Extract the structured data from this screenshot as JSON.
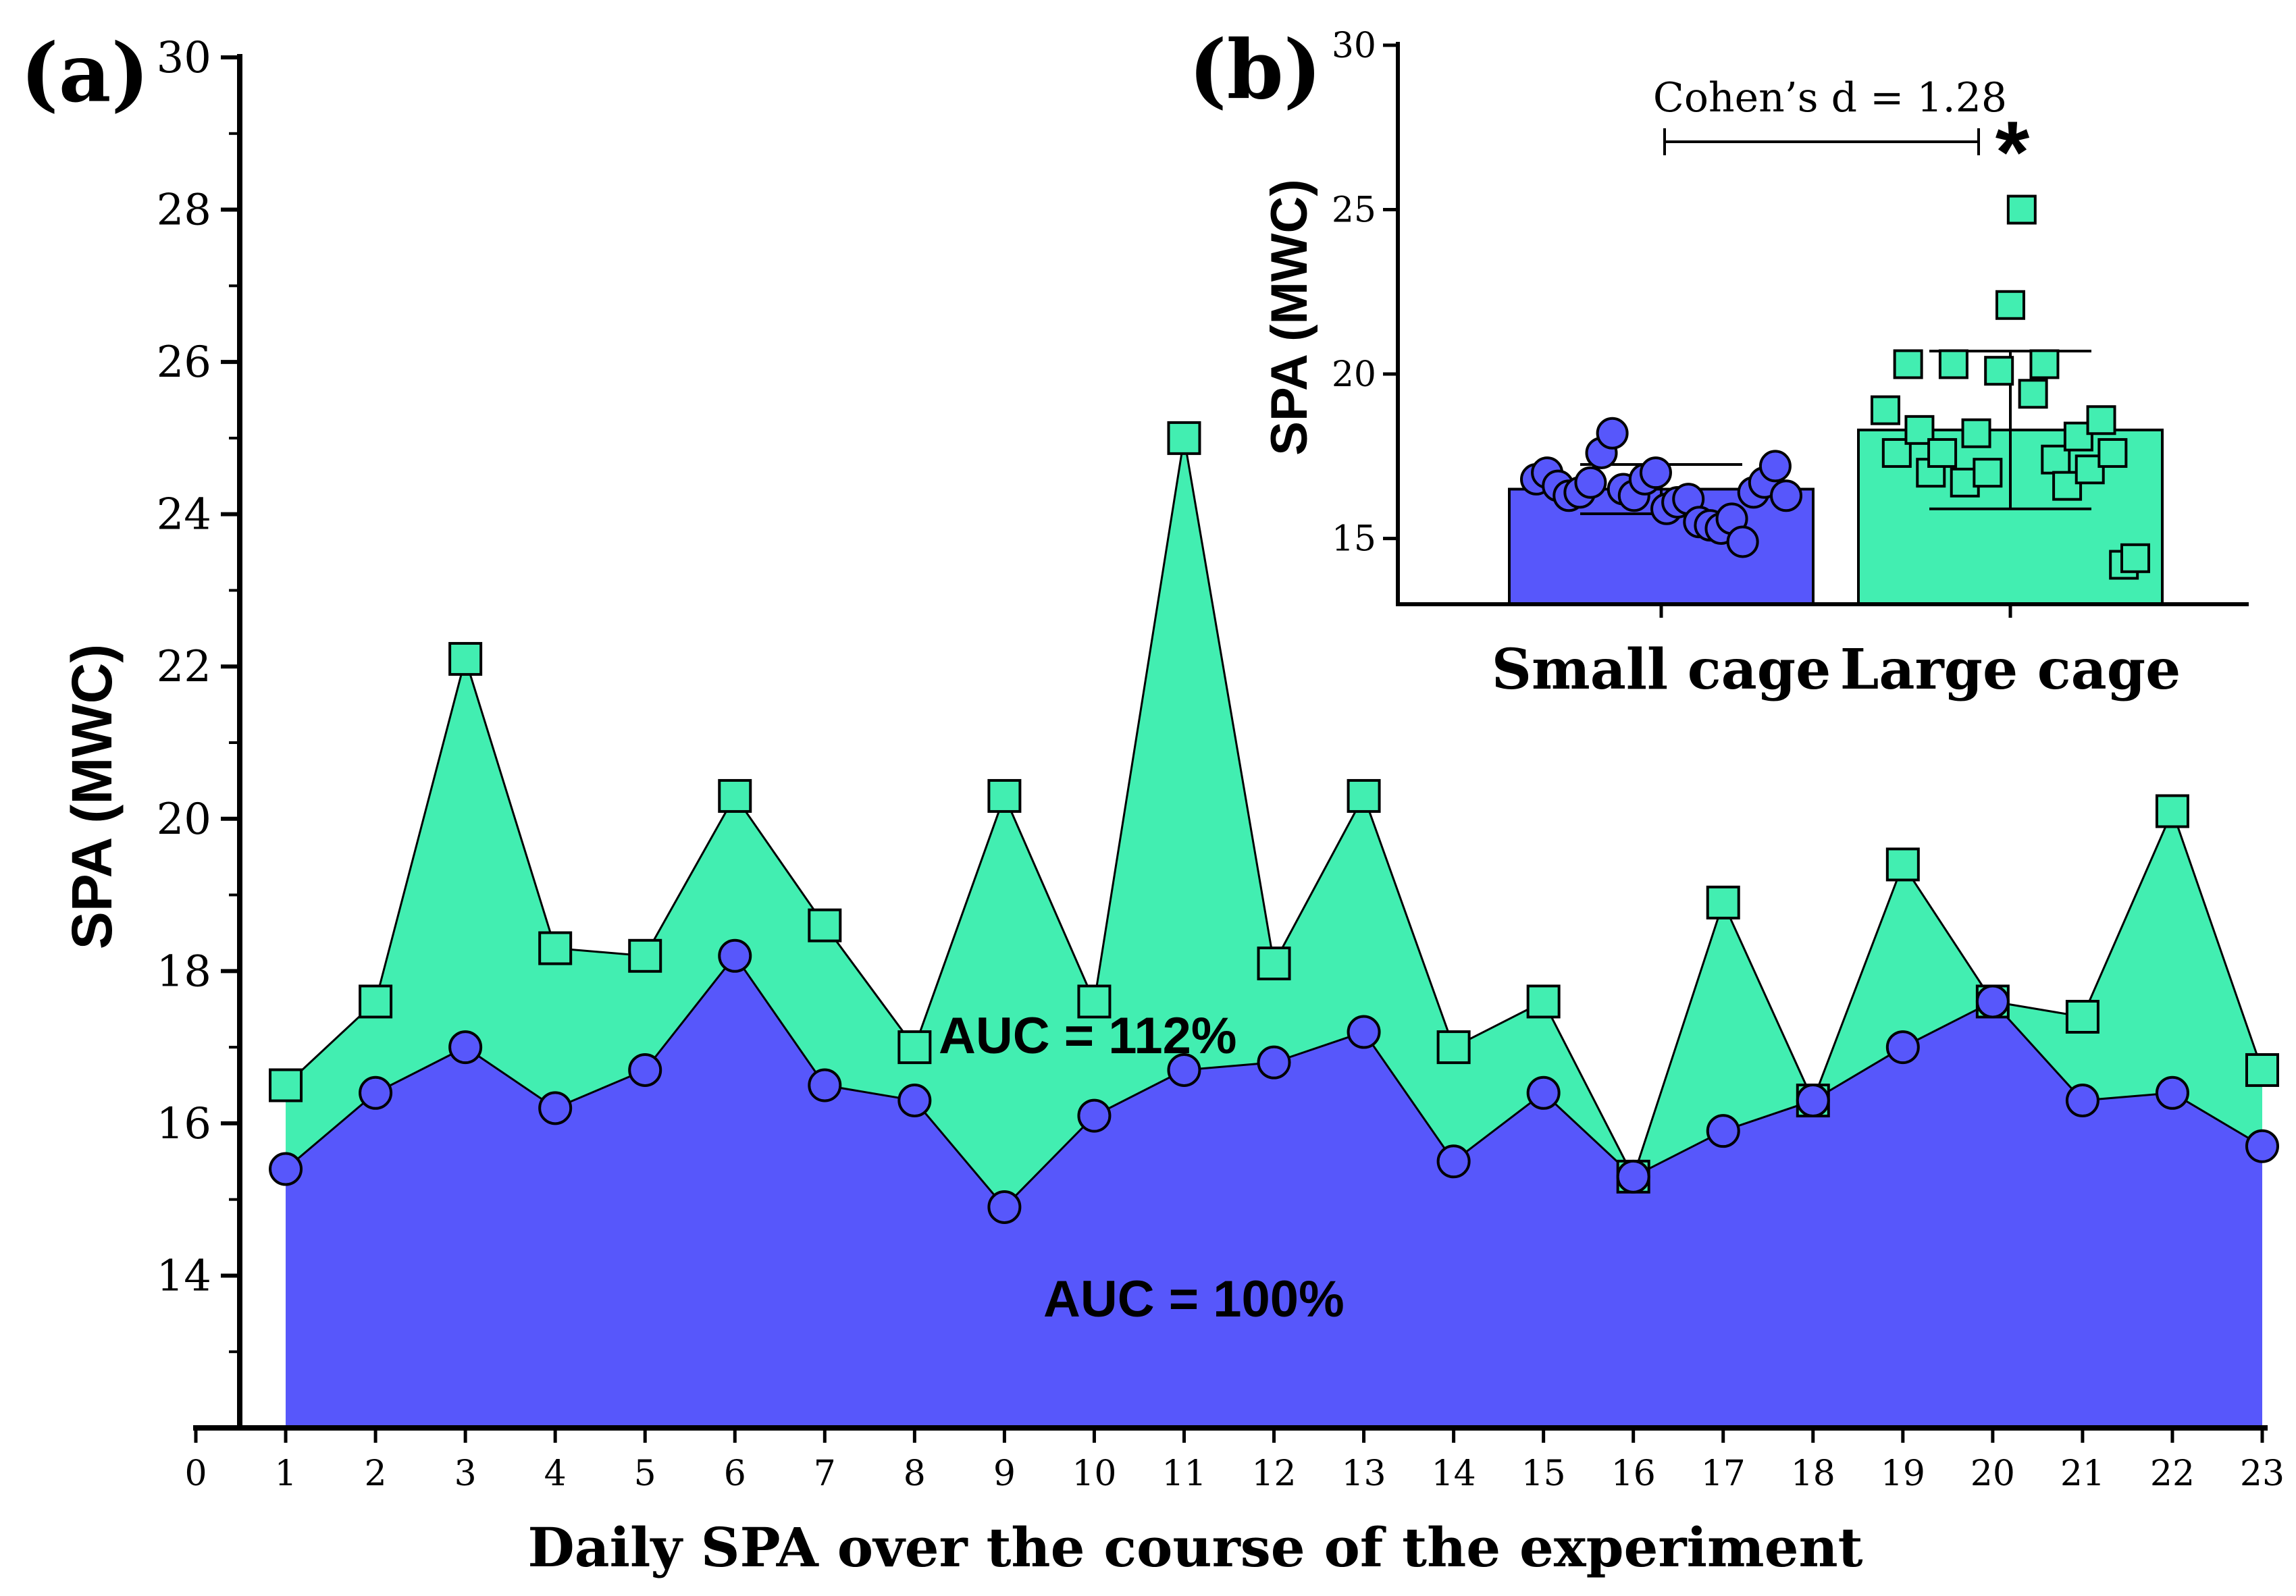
{
  "colors": {
    "small": "#5757fb",
    "large": "#42eeb1",
    "stroke": "#000000"
  },
  "panel_a": {
    "label": "(a)",
    "ylabel": "SPA (MWC)",
    "xlabel": "Daily SPA over the course of the experiment",
    "auc_small": "AUC = 100%",
    "auc_large": "AUC = 112%"
  },
  "panel_b": {
    "label": "(b)",
    "ylabel": "SPA (MWC)",
    "effect": "Cohen’s d = 1.28",
    "star": "*"
  },
  "chart_data": [
    {
      "type": "area",
      "title": "",
      "xlabel": "Daily SPA over the course of the experiment",
      "ylabel": "SPA (MWC)",
      "xlim": [
        0,
        23
      ],
      "ylim": [
        12,
        30
      ],
      "xticks": [
        "0",
        "1",
        "2",
        "3",
        "4",
        "5",
        "6",
        "7",
        "8",
        "9",
        "10",
        "11",
        "12",
        "13",
        "14",
        "15",
        "16",
        "17",
        "18",
        "19",
        "20",
        "21",
        "22",
        "23"
      ],
      "yticks": [
        "14",
        "16",
        "18",
        "20",
        "22",
        "24",
        "26",
        "28",
        "30"
      ],
      "x": [
        1,
        2,
        3,
        4,
        5,
        6,
        7,
        8,
        9,
        10,
        11,
        12,
        13,
        14,
        15,
        16,
        17,
        18,
        19,
        20,
        21,
        22,
        23
      ],
      "series": [
        {
          "name": "Large cage",
          "marker": "square",
          "values": [
            16.5,
            17.6,
            22.1,
            18.3,
            18.2,
            20.3,
            18.6,
            17.0,
            20.3,
            17.6,
            25.0,
            18.1,
            20.3,
            17.0,
            17.6,
            15.3,
            18.9,
            16.3,
            19.4,
            17.6,
            17.4,
            20.1,
            16.7
          ]
        },
        {
          "name": "Small cage",
          "marker": "circle",
          "values": [
            15.4,
            16.4,
            17.0,
            16.2,
            16.7,
            18.2,
            16.5,
            16.3,
            14.9,
            16.1,
            16.7,
            16.8,
            17.2,
            15.5,
            16.4,
            15.3,
            15.9,
            16.3,
            17.0,
            17.6,
            16.3,
            16.4,
            15.7
          ]
        }
      ],
      "annotations": [
        "AUC = 112%",
        "AUC = 100%"
      ]
    },
    {
      "type": "bar",
      "title": "",
      "ylabel": "SPA (MWC)",
      "ylim": [
        13,
        30
      ],
      "yticks": [
        "15",
        "20",
        "25",
        "30"
      ],
      "categories": [
        "Small cage",
        "Large cage"
      ],
      "values": [
        16.5,
        18.3
      ],
      "sd": [
        0.75,
        2.4
      ],
      "points": [
        [
          16.8,
          17.0,
          16.6,
          16.3,
          16.4,
          16.7,
          17.6,
          18.2,
          16.5,
          16.3,
          16.8,
          17.0,
          15.9,
          16.1,
          16.2,
          15.5,
          15.4,
          15.3,
          15.6,
          14.9,
          16.4,
          16.7,
          17.2,
          16.3
        ],
        [
          18.9,
          17.6,
          20.3,
          18.3,
          17.0,
          17.6,
          20.3,
          16.7,
          18.2,
          17.0,
          20.1,
          22.1,
          25.0,
          19.4,
          20.3,
          17.4,
          16.6,
          18.1,
          17.1,
          18.6,
          17.6,
          14.2,
          14.4
        ]
      ],
      "annotations": [
        "Cohen’s d = 1.28",
        "*"
      ]
    }
  ]
}
